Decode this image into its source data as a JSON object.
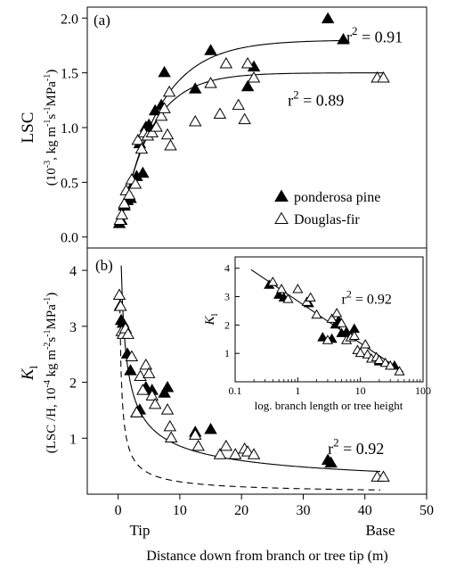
{
  "chart_data": [
    {
      "type": "scatter",
      "panel_label": "(a)",
      "ylabel": "LSC",
      "ylabel_units_parts": [
        {
          "t": "(10",
          "sup": false
        },
        {
          "t": "-3",
          "sup": true
        },
        {
          "t": ", kg m",
          "sup": false
        },
        {
          "t": "-1",
          "sup": true
        },
        {
          "t": "s",
          "sup": false
        },
        {
          "t": "-1",
          "sup": true
        },
        {
          "t": "MPa",
          "sup": false
        },
        {
          "t": "-1",
          "sup": true
        },
        {
          "t": ")",
          "sup": false
        }
      ],
      "xlim": [
        -5,
        50
      ],
      "ylim": [
        -0.1,
        2.1
      ],
      "yticks": [
        0.0,
        0.5,
        1.0,
        1.5,
        2.0
      ],
      "ytick_labels": [
        "0.0",
        "0.5",
        "1.0",
        "1.5",
        "2.0"
      ],
      "legend": {
        "position": "bottom-right",
        "entries": [
          {
            "label": "ponderosa pine",
            "marker": "filled-triangle"
          },
          {
            "label": "Douglas-fir",
            "marker": "open-triangle"
          }
        ]
      },
      "annotations": [
        {
          "base": "r",
          "sup": "2",
          "text": " = 0.91",
          "x": 37,
          "y": 1.78
        },
        {
          "base": "r",
          "sup": "2",
          "text": " = 0.89",
          "x": 27.5,
          "y": 1.2
        }
      ],
      "series": [
        {
          "name": "ponderosa pine",
          "marker": "filled",
          "fit": {
            "model": "exponential-rise",
            "a": 1.8,
            "b": 0.16,
            "x0": 0
          },
          "x": [
            0.2,
            0.5,
            1,
            1.5,
            2,
            2.5,
            3,
            3.5,
            4,
            4.5,
            5,
            6,
            7,
            7.5,
            12.5,
            15,
            21,
            22,
            34,
            36.5
          ],
          "y": [
            0.12,
            0.15,
            0.28,
            0.33,
            0.35,
            0.48,
            0.55,
            0.85,
            0.58,
            1.0,
            1.02,
            1.15,
            1.2,
            1.5,
            1.35,
            1.7,
            1.37,
            1.55,
            1.99,
            1.8
          ]
        },
        {
          "name": "Douglas-fir",
          "marker": "open",
          "fit": {
            "model": "exponential-rise",
            "a": 1.5,
            "b": 0.2,
            "x0": 0
          },
          "x": [
            0.3,
            0.6,
            1,
            1.3,
            1.8,
            2.2,
            2.8,
            3.2,
            3.8,
            4.2,
            4.8,
            5.5,
            6.2,
            7,
            7.5,
            8,
            8.3,
            8.5,
            12.5,
            15,
            16.5,
            17.5,
            19.5,
            20.5,
            21,
            22,
            42,
            43
          ],
          "y": [
            0.15,
            0.2,
            0.3,
            0.42,
            0.38,
            0.52,
            0.48,
            0.88,
            0.8,
            0.95,
            0.92,
            0.95,
            1.0,
            1.1,
            1.17,
            0.93,
            1.32,
            0.83,
            1.05,
            1.4,
            1.12,
            1.58,
            1.2,
            1.07,
            1.58,
            1.45,
            1.45,
            1.45
          ]
        }
      ]
    },
    {
      "type": "scatter",
      "panel_label": "(b)",
      "ylabel_italic": "K",
      "ylabel_sub": "l",
      "ylabel_units_parts": [
        {
          "t": "(LSC /H, 10",
          "sup": false
        },
        {
          "t": "-4",
          "sup": true
        },
        {
          "t": " kg m",
          "sup": false
        },
        {
          "t": "-2",
          "sup": true
        },
        {
          "t": "s",
          "sup": false
        },
        {
          "t": "-1",
          "sup": true
        },
        {
          "t": "MPa",
          "sup": false
        },
        {
          "t": "-1",
          "sup": true
        },
        {
          "t": ")",
          "sup": false
        }
      ],
      "xlim": [
        -5,
        50
      ],
      "ylim": [
        0,
        4.4
      ],
      "xticks": [
        0,
        10,
        20,
        30,
        40,
        50
      ],
      "xtick_labels": [
        "0",
        "10",
        "20",
        "30",
        "40",
        "50"
      ],
      "yticks": [
        1,
        2,
        3,
        4
      ],
      "ytick_labels": [
        "1",
        "2",
        "3",
        "4"
      ],
      "x_end_labels": {
        "left": "Tip",
        "right": "Base"
      },
      "xlabel": "Distance down from  branch or tree tip (m)",
      "annotations": [
        {
          "base": "r",
          "sup": "2",
          "text": " = 0.92",
          "x": 34,
          "y": 0.72
        }
      ],
      "fits": [
        {
          "style": "solid",
          "model": "power",
          "a": 2.85,
          "b": -0.52,
          "x_start": 0.5,
          "x_end": 42.5
        },
        {
          "style": "dashed",
          "model": "power",
          "a": 1.25,
          "b": -0.75,
          "x_start": 0.25,
          "x_end": 42.5
        }
      ],
      "series": [
        {
          "name": "ponderosa pine",
          "marker": "filled",
          "x": [
            0.3,
            0.5,
            0.8,
            1.5,
            2,
            3,
            3.5,
            4.5,
            5.5,
            7.5,
            8,
            12.5,
            15,
            34,
            34.5
          ],
          "y": [
            3.35,
            3.1,
            3.05,
            2.5,
            2.2,
            1.45,
            1.5,
            1.9,
            1.85,
            1.8,
            1.9,
            1.1,
            1.15,
            0.6,
            0.55
          ]
        },
        {
          "name": "Douglas-fir",
          "marker": "open",
          "x": [
            0.2,
            0.4,
            0.6,
            0.8,
            1.2,
            1.6,
            2.2,
            3,
            3.6,
            4,
            4.5,
            5,
            5.5,
            6,
            8,
            8.4,
            8.6,
            12.5,
            13,
            16.5,
            17.5,
            19,
            20.5,
            21,
            22,
            42,
            43
          ],
          "y": [
            3.55,
            3.35,
            2.9,
            2.85,
            2.95,
            2.85,
            2.45,
            1.45,
            2.1,
            1.85,
            2.3,
            2.15,
            1.75,
            1.6,
            1.5,
            1.2,
            1.0,
            1.05,
            0.85,
            0.7,
            0.85,
            0.7,
            0.8,
            0.75,
            0.7,
            0.3,
            0.3
          ]
        }
      ],
      "inset": {
        "type": "scatter",
        "xscale": "log",
        "xlim": [
          0.1,
          100
        ],
        "ylim": [
          0,
          4.4
        ],
        "xticks": [
          0.1,
          1,
          10,
          100
        ],
        "xtick_labels": [
          "0.1",
          "1",
          "10",
          "100"
        ],
        "yticks": [
          1,
          2,
          3,
          4
        ],
        "ytick_labels": [
          "1",
          "2",
          "3",
          "4"
        ],
        "ylabel_italic": "K",
        "ylabel_sub": "l",
        "xlabel": "log. branch length or tree height",
        "annotations": [
          {
            "base": "r",
            "sup": "2",
            "text": " = 0.92",
            "x": 5,
            "y": 2.75
          }
        ],
        "fit": {
          "model": "log-linear",
          "x_start": 0.18,
          "x_end": 48,
          "y_start": 3.95,
          "y_end": 0.35
        },
        "series": [
          {
            "name": "ponderosa pine",
            "marker": "filled",
            "x": [
              0.35,
              0.5,
              0.6,
              1.5,
              2.5,
              3.5,
              4,
              4.5,
              5,
              6,
              7,
              8,
              20,
              35
            ],
            "y": [
              3.4,
              3.05,
              2.95,
              2.75,
              1.55,
              1.5,
              2.0,
              2.15,
              1.7,
              1.75,
              1.6,
              1.85,
              0.7,
              0.55
            ]
          },
          {
            "name": "Douglas-fir",
            "marker": "open",
            "x": [
              0.4,
              0.55,
              0.7,
              1,
              1.4,
              1.6,
              2,
              3,
              3.5,
              4.2,
              5,
              6,
              7,
              8,
              9,
              10,
              12,
              13,
              15,
              18,
              20,
              25,
              30,
              42
            ],
            "y": [
              3.5,
              3.25,
              2.9,
              3.25,
              2.8,
              2.95,
              2.35,
              1.45,
              2.2,
              2.4,
              2.05,
              1.45,
              1.55,
              1.6,
              1.1,
              1.0,
              1.3,
              0.95,
              0.8,
              0.85,
              0.75,
              0.65,
              0.55,
              0.35
            ]
          }
        ]
      }
    }
  ]
}
